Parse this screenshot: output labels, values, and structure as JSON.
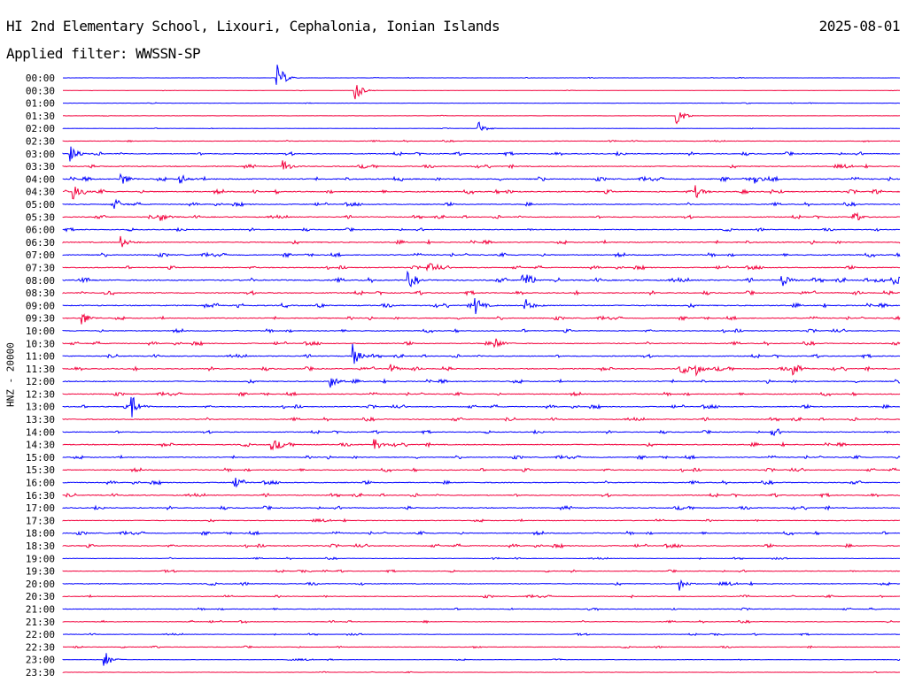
{
  "header": {
    "station": "HI 2nd Elementary School, Lixouri, Cephalonia, Ionian Islands",
    "date": "2025-08-01",
    "filter": "Applied filter: WWSSN-SP"
  },
  "chart_data": {
    "type": "line",
    "title": "HI 2nd Elementary School, Lixouri, Cephalonia, Ionian Islands",
    "ylabel": "HNZ - 20000",
    "xlabel": "",
    "minutes_per_line": 30,
    "row_labels": [
      "00:00",
      "00:30",
      "01:00",
      "01:30",
      "02:00",
      "02:30",
      "03:00",
      "03:30",
      "04:00",
      "04:30",
      "05:00",
      "05:30",
      "06:00",
      "06:30",
      "07:00",
      "07:30",
      "08:00",
      "08:30",
      "09:00",
      "09:30",
      "10:00",
      "10:30",
      "11:00",
      "11:30",
      "12:00",
      "12:30",
      "13:00",
      "13:30",
      "14:00",
      "14:30",
      "15:00",
      "15:30",
      "16:00",
      "16:30",
      "17:00",
      "17:30",
      "18:00",
      "18:30",
      "19:00",
      "19:30",
      "20:00",
      "20:30",
      "21:00",
      "21:30",
      "22:00",
      "22:30",
      "23:00",
      "23:30"
    ],
    "colors": [
      "#0000ff",
      "#f2003c"
    ],
    "noise_level": [
      0.3,
      0.2,
      0.3,
      0.3,
      0.3,
      0.5,
      1,
      1,
      1.2,
      1.2,
      1,
      1,
      0.9,
      1.1,
      1.1,
      1,
      1.3,
      1.1,
      1.2,
      1,
      1,
      1,
      1,
      1.1,
      1.1,
      1,
      1,
      1,
      0.9,
      1.1,
      1,
      1,
      1,
      1,
      1,
      0.8,
      1,
      1,
      0.6,
      0.7,
      0.9,
      0.8,
      0.7,
      0.7,
      0.6,
      0.6,
      0.5,
      0.4
    ],
    "events": [
      {
        "row": 0,
        "minute": 7.7,
        "amp": 16
      },
      {
        "row": 1,
        "minute": 10.5,
        "amp": 12
      },
      {
        "row": 3,
        "minute": 22,
        "amp": 12
      },
      {
        "row": 4,
        "minute": 14.9,
        "amp": 8
      },
      {
        "row": 6,
        "minute": 0.3,
        "amp": 12
      },
      {
        "row": 7,
        "minute": 7.9,
        "amp": 8
      },
      {
        "row": 8,
        "minute": 2.1,
        "amp": 8
      },
      {
        "row": 8,
        "minute": 4.2,
        "amp": 6
      },
      {
        "row": 8,
        "minute": 24.8,
        "amp": 6
      },
      {
        "row": 9,
        "minute": 0.4,
        "amp": 7
      },
      {
        "row": 9,
        "minute": 22.7,
        "amp": 7
      },
      {
        "row": 10,
        "minute": 1.9,
        "amp": 5
      },
      {
        "row": 11,
        "minute": 3.5,
        "amp": 6
      },
      {
        "row": 11,
        "minute": 28.3,
        "amp": 5
      },
      {
        "row": 13,
        "minute": 2.1,
        "amp": 7
      },
      {
        "row": 15,
        "minute": 13.1,
        "amp": 7
      },
      {
        "row": 16,
        "minute": 12.4,
        "amp": 7
      },
      {
        "row": 16,
        "minute": 16.5,
        "amp": 9
      },
      {
        "row": 16,
        "minute": 25.8,
        "amp": 7
      },
      {
        "row": 16,
        "minute": 29.7,
        "amp": 6
      },
      {
        "row": 18,
        "minute": 14.8,
        "amp": 10
      },
      {
        "row": 18,
        "minute": 16.6,
        "amp": 7
      },
      {
        "row": 19,
        "minute": 0.7,
        "amp": 8
      },
      {
        "row": 21,
        "minute": 15.5,
        "amp": 7
      },
      {
        "row": 22,
        "minute": 10.4,
        "amp": 14
      },
      {
        "row": 23,
        "minute": 11.7,
        "amp": 7
      },
      {
        "row": 23,
        "minute": 22.1,
        "amp": 7
      },
      {
        "row": 23,
        "minute": 22.7,
        "amp": 7
      },
      {
        "row": 23,
        "minute": 26.2,
        "amp": 8
      },
      {
        "row": 24,
        "minute": 9.6,
        "amp": 8
      },
      {
        "row": 26,
        "minute": 2.5,
        "amp": 12
      },
      {
        "row": 28,
        "minute": 25.4,
        "amp": 6
      },
      {
        "row": 29,
        "minute": 7.5,
        "amp": 7
      },
      {
        "row": 29,
        "minute": 11.2,
        "amp": 7
      },
      {
        "row": 32,
        "minute": 6.2,
        "amp": 5
      },
      {
        "row": 40,
        "minute": 22.1,
        "amp": 8
      },
      {
        "row": 46,
        "minute": 1.5,
        "amp": 10
      }
    ]
  }
}
